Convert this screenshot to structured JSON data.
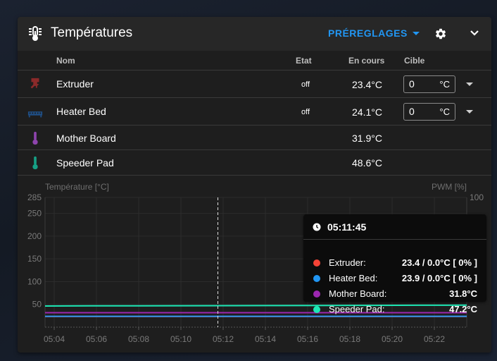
{
  "panel": {
    "title": "Températures",
    "presets_label": "PRÉREGLAGES",
    "icons": {
      "title": "thermometer-icon",
      "settings": "gear-icon",
      "collapse": "chevron-down-icon"
    }
  },
  "table": {
    "headers": {
      "name": "Nom",
      "state": "Etat",
      "current": "En cours",
      "target": "Cible"
    },
    "rows": [
      {
        "icon": "extruder-icon",
        "color": "#8b2a2a",
        "name": "Extruder",
        "state": "off",
        "current": "23.4°C",
        "target": "0",
        "unit": "°C"
      },
      {
        "icon": "heater-bed-icon",
        "color": "#1f4f86",
        "name": "Heater Bed",
        "state": "off",
        "current": "24.1°C",
        "target": "0",
        "unit": "°C"
      },
      {
        "icon": "thermometer-icon",
        "color": "#8e44ad",
        "name": "Mother Board",
        "current": "31.9°C"
      },
      {
        "icon": "thermometer-icon",
        "color": "#1abc9c",
        "name": "Speeder Pad",
        "current": "48.6°C"
      }
    ]
  },
  "chart_data": {
    "type": "line",
    "ylabel": "Température [°C]",
    "y2label": "PWM [%]",
    "ylim": [
      0,
      285
    ],
    "yticks": [
      "285",
      "250",
      "200",
      "150",
      "100",
      "50"
    ],
    "y2ticks": [
      "100"
    ],
    "xticks": [
      "05:04",
      "05:06",
      "05:08",
      "05:10",
      "05:12",
      "05:14",
      "05:16",
      "05:18",
      "05:20",
      "05:22"
    ],
    "series": [
      {
        "name": "Extruder",
        "color": "#f44336",
        "values": [
          23.4,
          23.4,
          23.4,
          23.4,
          23.4,
          23.4,
          23.4,
          23.4,
          23.4,
          23.4
        ]
      },
      {
        "name": "Heater Bed",
        "color": "#2196f3",
        "values": [
          23.9,
          23.9,
          23.9,
          23.9,
          23.9,
          23.9,
          23.9,
          23.9,
          23.9,
          23.9
        ]
      },
      {
        "name": "Mother Board",
        "color": "#9c27b0",
        "values": [
          31.8,
          31.8,
          31.8,
          31.8,
          31.8,
          31.8,
          31.8,
          31.8,
          31.8,
          31.8
        ]
      },
      {
        "name": "Speeder Pad",
        "color": "#1de9b6",
        "values": [
          46.5,
          46.8,
          47.0,
          47.1,
          47.2,
          47.4,
          47.6,
          47.9,
          48.2,
          48.4
        ]
      }
    ],
    "cursor_time": "05:11:45"
  },
  "tooltip": {
    "time": "05:11:45",
    "rows": [
      {
        "label": "Extruder:",
        "value": "23.4 / 0.0°C [ 0% ]",
        "color": "#f44336"
      },
      {
        "label": "Heater Bed:",
        "value": "23.9 / 0.0°C [ 0% ]",
        "color": "#2196f3"
      },
      {
        "label": "Mother Board:",
        "value": "31.8°C",
        "color": "#9c27b0"
      },
      {
        "label": "Speeder Pad:",
        "value": "47.2°C",
        "color": "#1de9b6"
      }
    ]
  }
}
